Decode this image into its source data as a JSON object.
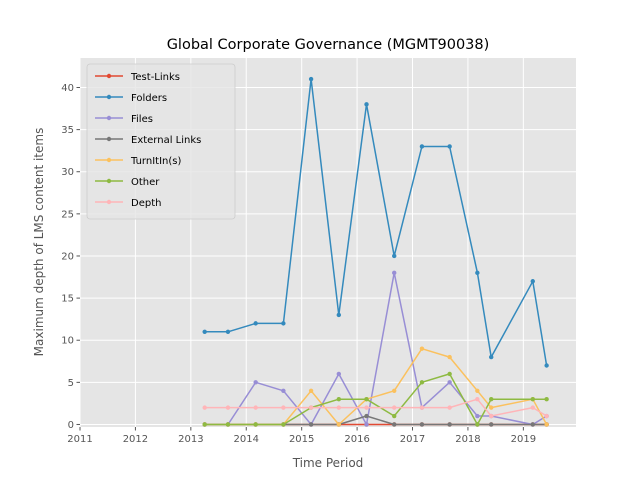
{
  "chart_data": {
    "type": "line",
    "title": "Global Corporate Governance (MGMT90038)",
    "xlabel": "Time Period",
    "ylabel": "Maximum depth of LMS content items",
    "xlim": [
      2011.0,
      2019.95
    ],
    "ylim": [
      -0.3,
      43.5
    ],
    "xticks": [
      2011,
      2012,
      2013,
      2014,
      2015,
      2016,
      2017,
      2018,
      2019
    ],
    "yticks": [
      0,
      5,
      10,
      15,
      20,
      25,
      30,
      35,
      40
    ],
    "grid": true,
    "legend_position": "top-left",
    "x": [
      2013.25,
      2013.67,
      2014.17,
      2014.67,
      2015.17,
      2015.67,
      2016.17,
      2016.67,
      2017.17,
      2017.67,
      2018.17,
      2018.42,
      2019.17,
      2019.42
    ],
    "series": [
      {
        "name": "Test-Links",
        "color": "#E24A33",
        "values": [
          0,
          0,
          0,
          0,
          0,
          0,
          0,
          0,
          0,
          0,
          0,
          0,
          0,
          0
        ]
      },
      {
        "name": "Folders",
        "color": "#348ABD",
        "values": [
          11,
          11,
          12,
          12,
          41,
          13,
          38,
          20,
          33,
          33,
          18,
          8,
          17,
          7
        ]
      },
      {
        "name": "Files",
        "color": "#988ED5",
        "values": [
          0,
          0,
          5,
          4,
          0,
          6,
          0,
          18,
          2,
          5,
          1,
          1,
          0,
          1
        ]
      },
      {
        "name": "External Links",
        "color": "#777777",
        "values": [
          0,
          0,
          0,
          0,
          0,
          0,
          1,
          0,
          0,
          0,
          0,
          0,
          0,
          0
        ]
      },
      {
        "name": "TurnItIn(s)",
        "color": "#FBC15E",
        "values": [
          0,
          0,
          0,
          0,
          4,
          0,
          3,
          4,
          9,
          8,
          4,
          2,
          3,
          0
        ]
      },
      {
        "name": "Other",
        "color": "#8EBA42",
        "values": [
          0,
          0,
          0,
          0,
          2,
          3,
          3,
          1,
          5,
          6,
          0,
          3,
          3,
          3
        ]
      },
      {
        "name": "Depth",
        "color": "#FFB5B8",
        "values": [
          2,
          2,
          2,
          2,
          2,
          2,
          2,
          2,
          2,
          2,
          3,
          1,
          2,
          1
        ]
      }
    ]
  }
}
